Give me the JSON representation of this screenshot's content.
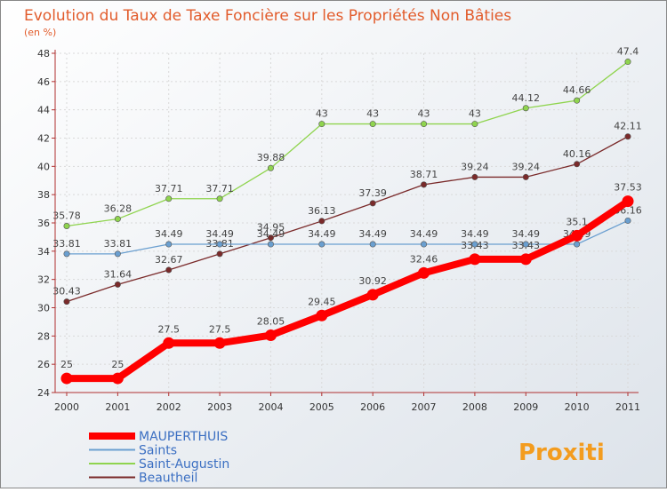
{
  "chart_data": {
    "type": "line",
    "title": "Evolution du Taux de Taxe Foncière sur les Propriétés Non Bâties",
    "subtitle": "(en %)",
    "x": [
      "2000",
      "2001",
      "2002",
      "2003",
      "2004",
      "2005",
      "2006",
      "2007",
      "2008",
      "2009",
      "2010",
      "2011"
    ],
    "ylim": [
      24,
      48
    ],
    "yticks": [
      24,
      26,
      28,
      30,
      32,
      34,
      36,
      38,
      40,
      42,
      44,
      46,
      48
    ],
    "grid": true,
    "legend_position": "bottom-left",
    "series": [
      {
        "name": "MAUPERTHUIS",
        "color": "#ff0000",
        "values": [
          25,
          25,
          27.5,
          27.5,
          28.05,
          29.45,
          30.92,
          32.46,
          33.43,
          33.43,
          35.1,
          37.53
        ],
        "labels": [
          "25",
          "25",
          "27.5",
          "27.5",
          "28.05",
          "29.45",
          "30.92",
          "32.46",
          "33.43",
          "33.43",
          "35.1",
          "37.53"
        ]
      },
      {
        "name": "Saints",
        "color": "#6a9fd0",
        "values": [
          33.81,
          33.81,
          34.49,
          34.49,
          34.49,
          34.49,
          34.49,
          34.49,
          34.49,
          34.49,
          34.49,
          36.16
        ],
        "labels": [
          "33.81",
          "33.81",
          "34.49",
          "34.49",
          "34.49",
          "34.49",
          "34.49",
          "34.49",
          "34.49",
          "34.49",
          "34.49",
          "36.16"
        ]
      },
      {
        "name": "Saint-Augustin",
        "color": "#8fd44e",
        "values": [
          35.78,
          36.28,
          37.71,
          37.71,
          39.88,
          43,
          43,
          43,
          43,
          44.12,
          44.66,
          47.4
        ],
        "labels": [
          "35.78",
          "36.28",
          "37.71",
          "37.71",
          "39.88",
          "43",
          "43",
          "43",
          "43",
          "44.12",
          "44.66",
          "47.4"
        ]
      },
      {
        "name": "Beautheil",
        "color": "#7a2a2a",
        "values": [
          30.43,
          31.64,
          32.67,
          33.81,
          34.95,
          36.13,
          37.39,
          38.71,
          39.24,
          39.24,
          40.16,
          42.11
        ],
        "labels": [
          "30.43",
          "31.64",
          "32.67",
          "33.81",
          "34.95",
          "36.13",
          "37.39",
          "38.71",
          "39.24",
          "39.24",
          "40.16",
          "42.11"
        ]
      }
    ]
  },
  "logo": {
    "text": "Proxiti"
  }
}
